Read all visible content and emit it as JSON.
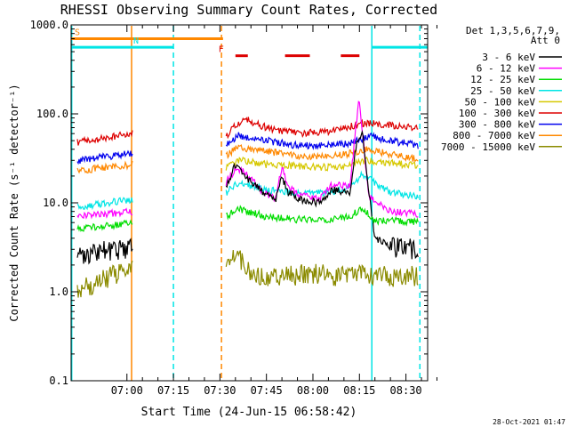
{
  "chart_data": {
    "type": "line",
    "title": "RHESSI Observing Summary Count Rates, Corrected",
    "xlabel": "Start Time (24-Jun-15 06:58:42)",
    "ylabel": "Corrected Count Rate (s⁻¹ detector⁻¹)",
    "yscale": "log",
    "xlim": [
      -18,
      97
    ],
    "ylim": [
      0.1,
      1000
    ],
    "x_units": "minutes from 07:00",
    "x_ticks": [
      {
        "value": 0,
        "label": "07:00"
      },
      {
        "value": 15,
        "label": "07:15"
      },
      {
        "value": 30,
        "label": "07:30"
      },
      {
        "value": 45,
        "label": "07:45"
      },
      {
        "value": 60,
        "label": "08:00"
      },
      {
        "value": 75,
        "label": "08:15"
      },
      {
        "value": 90,
        "label": "08:30"
      }
    ],
    "y_ticks": [
      {
        "value": 0.1,
        "label": "0.1"
      },
      {
        "value": 1,
        "label": "1.0"
      },
      {
        "value": 10,
        "label": "10.0"
      },
      {
        "value": 100,
        "label": "100.0"
      },
      {
        "value": 1000,
        "label": "1000.0"
      }
    ],
    "legend": {
      "position": "top-right",
      "header": [
        "Det 1,3,5,6,7,9,",
        "Att 0"
      ],
      "entries": [
        {
          "label": "3 - 6 keV",
          "color": "#000000"
        },
        {
          "label": "6 - 12 keV",
          "color": "#ff00ff"
        },
        {
          "label": "12 - 25 keV",
          "color": "#00dd00"
        },
        {
          "label": "25 - 50 keV",
          "color": "#00e5e5"
        },
        {
          "label": "50 - 100 keV",
          "color": "#d6c800"
        },
        {
          "label": "100 - 300 keV",
          "color": "#dd0000"
        },
        {
          "label": "300 - 800 keV",
          "color": "#0000ee"
        },
        {
          "label": "800 - 7000 keV",
          "color": "#ff8800"
        },
        {
          "label": "7000 - 15000 keV",
          "color": "#8b8b00"
        }
      ]
    },
    "flag_bars": [
      {
        "label": "S",
        "color": "#ff8800",
        "level": 700,
        "segments": [
          [
            -18,
            31
          ]
        ]
      },
      {
        "label": "N",
        "color": "#00e5e5",
        "level": 560,
        "segments": [
          [
            -18,
            15
          ],
          [
            79,
            97
          ]
        ]
      },
      {
        "label": "F",
        "color": "#dd0000",
        "level": 450,
        "segments": [
          [
            35,
            39
          ],
          [
            51,
            59
          ],
          [
            69,
            75
          ]
        ]
      }
    ],
    "vertical_markers": [
      {
        "x": -17.8,
        "color": "#00e5e5",
        "style": "solid"
      },
      {
        "x": 1.5,
        "color": "#ff8800",
        "style": "solid"
      },
      {
        "x": 15,
        "color": "#00e5e5",
        "style": "dashed"
      },
      {
        "x": 30.5,
        "color": "#ff8800",
        "style": "dashed"
      },
      {
        "x": 79,
        "color": "#00e5e5",
        "style": "solid"
      },
      {
        "x": 94.5,
        "color": "#00e5e5",
        "style": "dashed"
      }
    ],
    "series": [
      {
        "name": "100 - 300 keV",
        "color": "#dd0000",
        "segments": [
          {
            "x": [
              -16,
              2
            ],
            "y": [
              48,
              60
            ]
          },
          {
            "x": [
              32,
              35,
              38,
              45,
              55,
              65,
              72,
              77,
              85,
              94
            ],
            "y": [
              55,
              75,
              88,
              70,
              60,
              63,
              72,
              80,
              75,
              68
            ]
          }
        ]
      },
      {
        "name": "300 - 800 keV",
        "color": "#0000ee",
        "segments": [
          {
            "x": [
              -16,
              2
            ],
            "y": [
              30,
              36
            ]
          },
          {
            "x": [
              32,
              36,
              45,
              55,
              65,
              72,
              78,
              85,
              94
            ],
            "y": [
              45,
              57,
              50,
              44,
              44,
              47,
              56,
              50,
              44
            ]
          }
        ]
      },
      {
        "name": "800 - 7000 keV",
        "color": "#ff8800",
        "segments": [
          {
            "x": [
              -16,
              2
            ],
            "y": [
              23,
              27
            ]
          },
          {
            "x": [
              32,
              36,
              45,
              55,
              65,
              72,
              78,
              85,
              94
            ],
            "y": [
              34,
              42,
              38,
              34,
              33,
              36,
              40,
              35,
              31
            ]
          }
        ]
      },
      {
        "name": "50 - 100 keV",
        "color": "#d6c800",
        "segments": [
          {
            "x": [
              32,
              36,
              45,
              55,
              65,
              72,
              78,
              85,
              94
            ],
            "y": [
              25,
              30,
              27,
              26,
              25,
              27,
              30,
              28,
              26
            ]
          }
        ]
      },
      {
        "name": "25 - 50 keV",
        "color": "#00e5e5",
        "segments": [
          {
            "x": [
              -16,
              2
            ],
            "y": [
              9,
              11
            ]
          },
          {
            "x": [
              32,
              36,
              45,
              55,
              65,
              72,
              76,
              85,
              94
            ],
            "y": [
              13,
              17,
              14,
              13,
              13,
              15,
              21,
              13,
              12
            ]
          }
        ]
      },
      {
        "name": "6 - 12 keV",
        "color": "#ff00ff",
        "segments": [
          {
            "x": [
              -16,
              2
            ],
            "y": [
              7,
              8
            ]
          },
          {
            "x": [
              32,
              35,
              38,
              44,
              48,
              50,
              52,
              56,
              62,
              66,
              72,
              74,
              75,
              76,
              78,
              85,
              94
            ],
            "y": [
              17,
              24,
              22,
              13,
              11,
              25,
              15,
              12,
              11,
              16,
              15,
              80,
              150,
              60,
              12,
              8,
              7.5
            ]
          }
        ]
      },
      {
        "name": "3 - 6 keV",
        "color": "#000000",
        "segments": [
          {
            "x": [
              -16,
              2
            ],
            "y": [
              2.5,
              3.2
            ]
          },
          {
            "x": [
              32,
              35,
              38,
              44,
              48,
              50,
              52,
              56,
              62,
              66,
              72,
              74,
              76,
              78,
              80,
              85,
              94
            ],
            "y": [
              15,
              27,
              20,
              13,
              11,
              20,
              13,
              11,
              10,
              14,
              13,
              45,
              60,
              14,
              4,
              3.2,
              3
            ]
          }
        ]
      },
      {
        "name": "12 - 25 keV",
        "color": "#00dd00",
        "segments": [
          {
            "x": [
              -16,
              2
            ],
            "y": [
              5,
              6
            ]
          },
          {
            "x": [
              32,
              36,
              45,
              55,
              65,
              72,
              76,
              80,
              85,
              94
            ],
            "y": [
              7,
              8.5,
              7,
              6.5,
              6.5,
              7,
              9,
              6,
              6.5,
              6
            ]
          }
        ]
      },
      {
        "name": "7000 - 15000 keV",
        "color": "#8b8b00",
        "segments": [
          {
            "x": [
              -16,
              2
            ],
            "y": [
              1,
              2
            ]
          },
          {
            "x": [
              32,
              35,
              40,
              50,
              60,
              70,
              80,
              94
            ],
            "y": [
              2,
              3,
              1.5,
              1.5,
              1.6,
              1.5,
              1.5,
              1.5
            ]
          }
        ]
      }
    ],
    "footer_date": "28-Oct-2021 01:47"
  }
}
